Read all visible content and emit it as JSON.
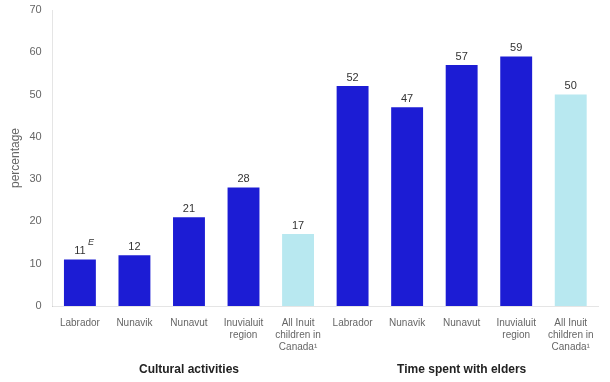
{
  "chart_data": {
    "type": "bar",
    "categories": [
      "Labrador",
      "Nunavik",
      "Nunavut",
      "Inuvialuit\nregion",
      "All Inuit\nchildren in\nCanada¹",
      "Labrador",
      "Nunavik",
      "Nunavut",
      "Inuvialuit\nregion",
      "All Inuit\nchildren in\nCanada¹"
    ],
    "values": [
      11,
      12,
      21,
      28,
      17,
      52,
      47,
      57,
      59,
      50
    ],
    "colors": [
      "#1c1cd4",
      "#1c1cd4",
      "#1c1cd4",
      "#1c1cd4",
      "#b8e8f0",
      "#1c1cd4",
      "#1c1cd4",
      "#1c1cd4",
      "#1c1cd4",
      "#b8e8f0"
    ],
    "data_labels": true,
    "ylabel": "percentage",
    "ylim": [
      0,
      70
    ],
    "yticks": [
      0,
      10,
      20,
      30,
      40,
      50,
      60,
      70
    ],
    "group_labels": [
      "Cultural activities",
      "Time spent with elders"
    ],
    "annotations": [
      {
        "text": "E",
        "bar": 0
      }
    ],
    "grid": false,
    "legend": false
  }
}
